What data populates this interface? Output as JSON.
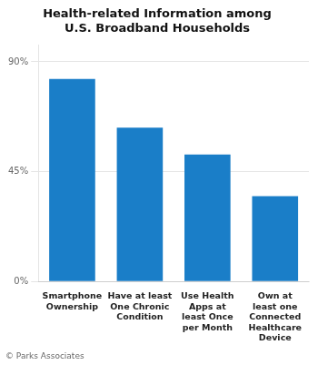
{
  "chart_data": {
    "type": "bar",
    "title": "Health-related Information among\nU.S. Broadband Households",
    "categories": [
      "Smartphone\nOwnership",
      "Have at least\nOne Chronic\nCondition",
      "Use Health\nApps at\nleast Once\nper Month",
      "Own at\nleast one\nConnected\nHealthcare\nDevice"
    ],
    "values": [
      83,
      63,
      52,
      35
    ],
    "color": "#1a7ec8",
    "ylim": [
      0,
      97
    ],
    "yticks": [
      {
        "value": 0,
        "label": "0%"
      },
      {
        "value": 45,
        "label": "45%"
      },
      {
        "value": 90,
        "label": "90%"
      }
    ],
    "grid": true,
    "footnote": "© Parks Associates"
  }
}
